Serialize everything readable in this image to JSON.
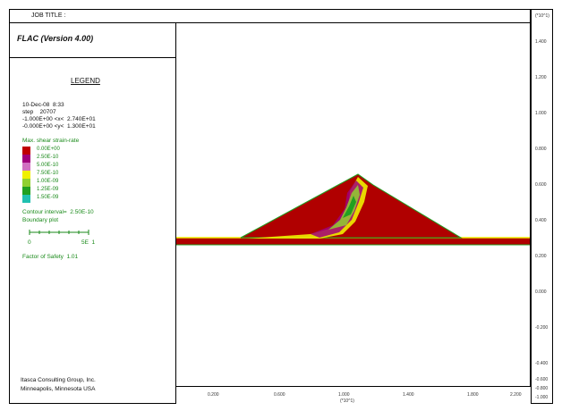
{
  "header": {
    "job_title": "JOB TITLE :"
  },
  "titlebox": {
    "title": "FLAC (Version 4.00)"
  },
  "legend": {
    "title": "LEGEND",
    "lines": [
      "10-Dec-08  8:33",
      "step    20707",
      "-1.000E+00 <x<  2.740E+01",
      "-0.000E+00 <y<  1.300E+01"
    ],
    "contour_title": "Max. shear strain-rate",
    "contour_levels": [
      {
        "label": "0.00E+00",
        "color": "#c00000"
      },
      {
        "label": "2.50E-10",
        "color": "#a0007a"
      },
      {
        "label": "5.00E-10",
        "color": "#d070c0"
      },
      {
        "label": "7.50E-10",
        "color": "#f0f000"
      },
      {
        "label": "1.00E-09",
        "color": "#90d030"
      },
      {
        "label": "1.25E-09",
        "color": "#20a020"
      },
      {
        "label": "1.50E-09",
        "color": "#20c0b0"
      }
    ],
    "contour_interval": "Contour interval=  2.50E-10",
    "boundary_plot": "Boundary plot",
    "scale_left": "0",
    "scale_right": "5E  1",
    "factor_of_safety": "Factor of Safety  1.01"
  },
  "credits": {
    "line1": "Itasca Consulting Group, Inc.",
    "line2": "Minneapolis, Minnesota  USA"
  },
  "axes": {
    "right_header": "(*10^1)",
    "y_ticks": [
      "1.400",
      "1.200",
      "1.000",
      "0.800",
      "0.600",
      "0.400",
      "0.200",
      "0.000",
      "-0.200",
      "-0.400",
      "-0.600",
      "-0.800",
      "-1.000"
    ],
    "x_ticks": [
      "0.200",
      "0.600",
      "1.000",
      "1.400",
      "1.800",
      "2.200"
    ],
    "x_unit": "(*10^1)"
  },
  "colors": {
    "dam": "#b00000",
    "foundation": "#b00000",
    "ground_line": "#f0f000",
    "outline": "#20a020"
  }
}
